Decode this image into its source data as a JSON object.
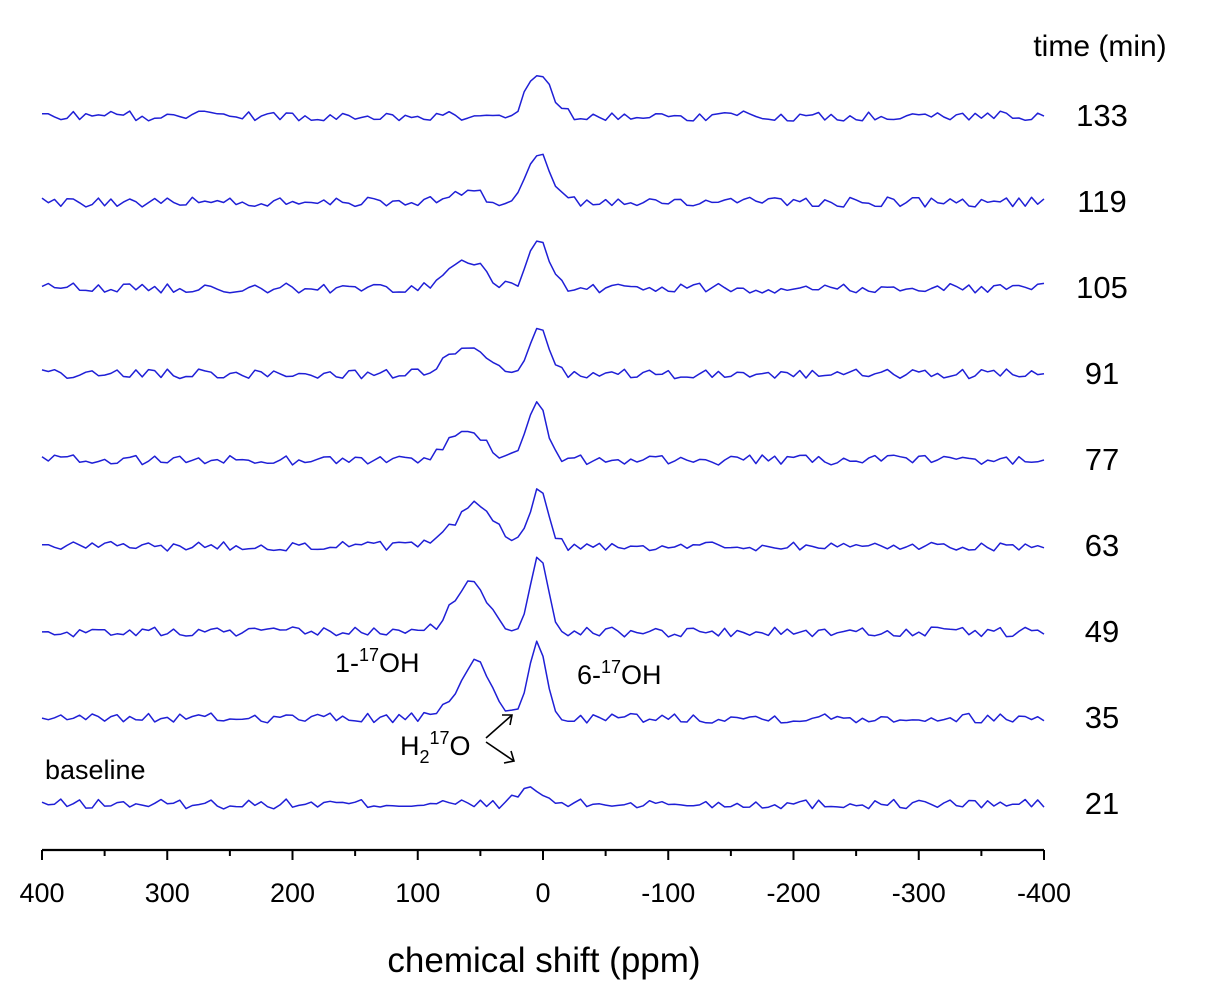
{
  "chart_data": {
    "type": "line",
    "title": "",
    "xlabel": "chemical shift (ppm)",
    "ylabel": "",
    "xlim": [
      400,
      -400
    ],
    "x_ticks": [
      400,
      300,
      200,
      100,
      0,
      -100,
      -200,
      -300,
      -400
    ],
    "x_tick_labels": [
      "400",
      "300",
      "200",
      "100",
      "0",
      "-100",
      "-200",
      "-300",
      "-400"
    ],
    "legend_header": "time (min)",
    "series": [
      {
        "name": "21",
        "label": "21",
        "peaks": [
          {
            "ppm": 10,
            "height": 0.16,
            "width": 9
          }
        ]
      },
      {
        "name": "35",
        "label": "35",
        "peaks": [
          {
            "ppm": 55,
            "height": 0.55,
            "width": 13
          },
          {
            "ppm": 5,
            "height": 0.75,
            "width": 7
          }
        ]
      },
      {
        "name": "49",
        "label": "49",
        "peaks": [
          {
            "ppm": 58,
            "height": 0.48,
            "width": 14
          },
          {
            "ppm": 3,
            "height": 0.8,
            "width": 7
          }
        ]
      },
      {
        "name": "63",
        "label": "63",
        "peaks": [
          {
            "ppm": 55,
            "height": 0.42,
            "width": 15
          },
          {
            "ppm": 3,
            "height": 0.62,
            "width": 7
          }
        ]
      },
      {
        "name": "77",
        "label": "77",
        "peaks": [
          {
            "ppm": 62,
            "height": 0.28,
            "width": 15
          },
          {
            "ppm": 5,
            "height": 0.62,
            "width": 7
          }
        ]
      },
      {
        "name": "91",
        "label": "91",
        "peaks": [
          {
            "ppm": 62,
            "height": 0.25,
            "width": 15
          },
          {
            "ppm": 3,
            "height": 0.45,
            "width": 7
          }
        ]
      },
      {
        "name": "105",
        "label": "105",
        "peaks": [
          {
            "ppm": 60,
            "height": 0.27,
            "width": 14
          },
          {
            "ppm": 3,
            "height": 0.5,
            "width": 8
          }
        ]
      },
      {
        "name": "119",
        "label": "119",
        "peaks": [
          {
            "ppm": 62,
            "height": 0.12,
            "width": 12
          },
          {
            "ppm": 3,
            "height": 0.46,
            "width": 9
          }
        ]
      },
      {
        "name": "133",
        "label": "133",
        "peaks": [
          {
            "ppm": 3,
            "height": 0.4,
            "width": 10
          }
        ]
      }
    ],
    "annotations": [
      {
        "text": "baseline",
        "near": "21"
      },
      {
        "text_main": "1-",
        "sup": "17",
        "text_end": "OH",
        "near": "35"
      },
      {
        "text_main": "6-",
        "sup": "17",
        "text_end": "OH",
        "near": "35"
      },
      {
        "text_main": "H",
        "sub": "2",
        "sup": "17",
        "text_end": "O",
        "near": "35"
      }
    ]
  }
}
